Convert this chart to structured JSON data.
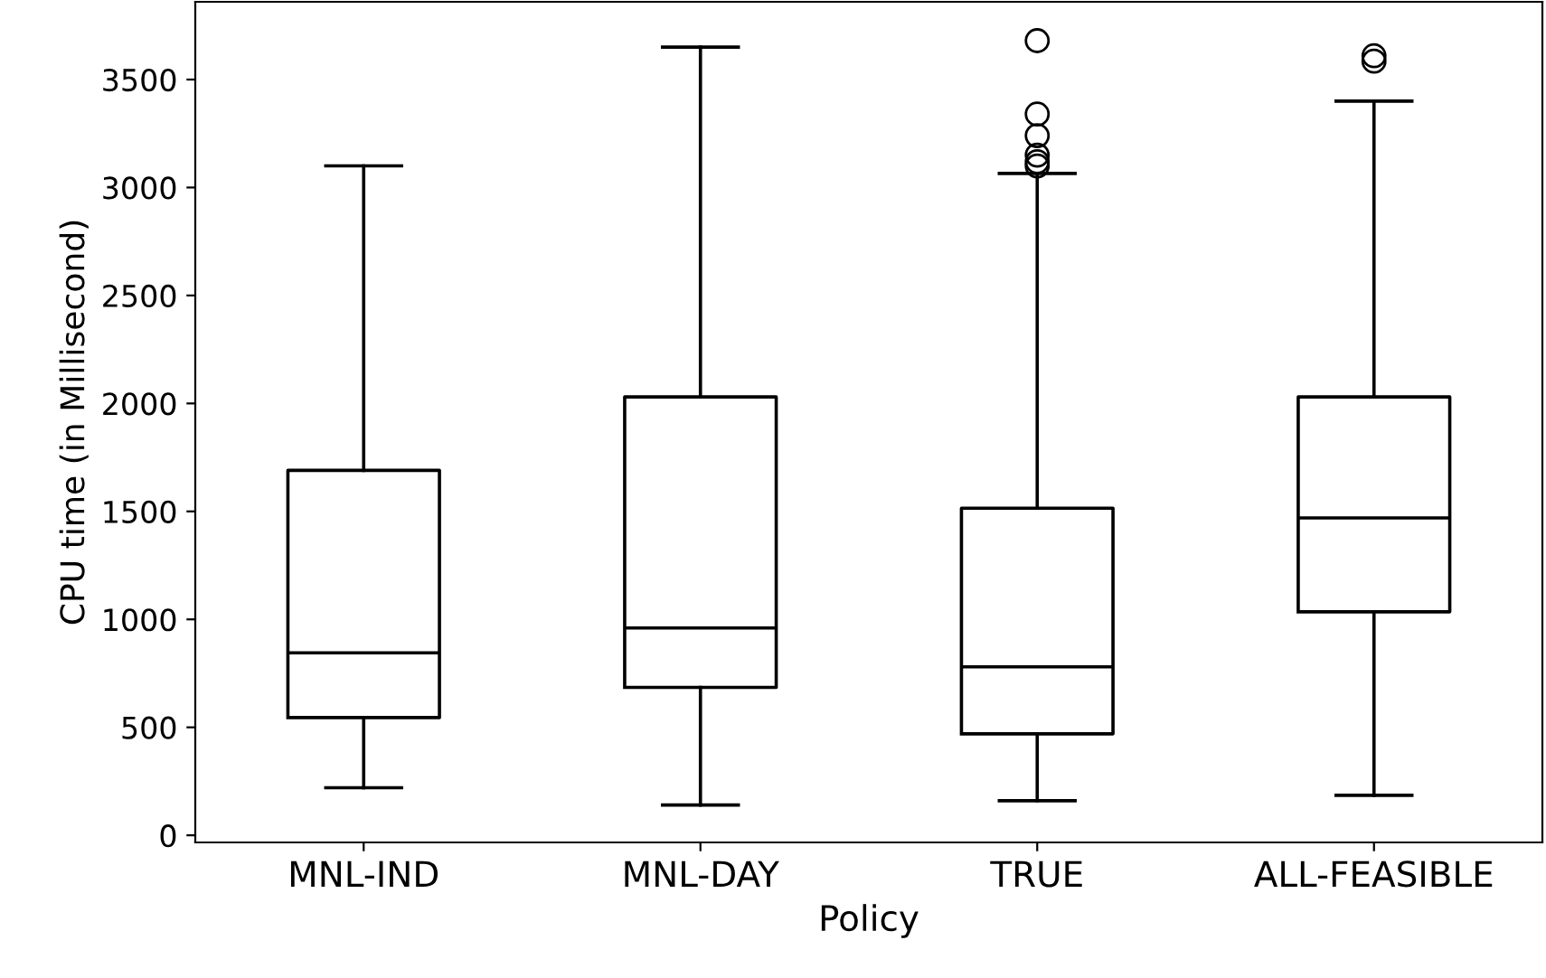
{
  "chart_data": {
    "type": "box",
    "xlabel": "Policy",
    "ylabel": "CPU time (in Millisecond)",
    "categories": [
      "MNL-IND",
      "MNL-DAY",
      "TRUE",
      "ALL-FEASIBLE"
    ],
    "boxes": [
      {
        "low": 220,
        "q1": 545,
        "median": 845,
        "q3": 1690,
        "high": 3100
      },
      {
        "low": 140,
        "q1": 685,
        "median": 960,
        "q3": 2030,
        "high": 3650
      },
      {
        "low": 160,
        "q1": 470,
        "median": 780,
        "q3": 1515,
        "high": 3065,
        "outliers": [
          3680,
          3340,
          3240,
          3150,
          3120,
          3100
        ]
      },
      {
        "low": 185,
        "q1": 1035,
        "median": 1470,
        "q3": 2030,
        "high": 3400,
        "outliers": [
          3610,
          3585
        ]
      }
    ],
    "color": "#000000",
    "ylim": [
      -33,
      3860
    ],
    "yticks": [
      0,
      500,
      1000,
      1500,
      2000,
      2500,
      3000,
      3500
    ],
    "grid": false
  }
}
